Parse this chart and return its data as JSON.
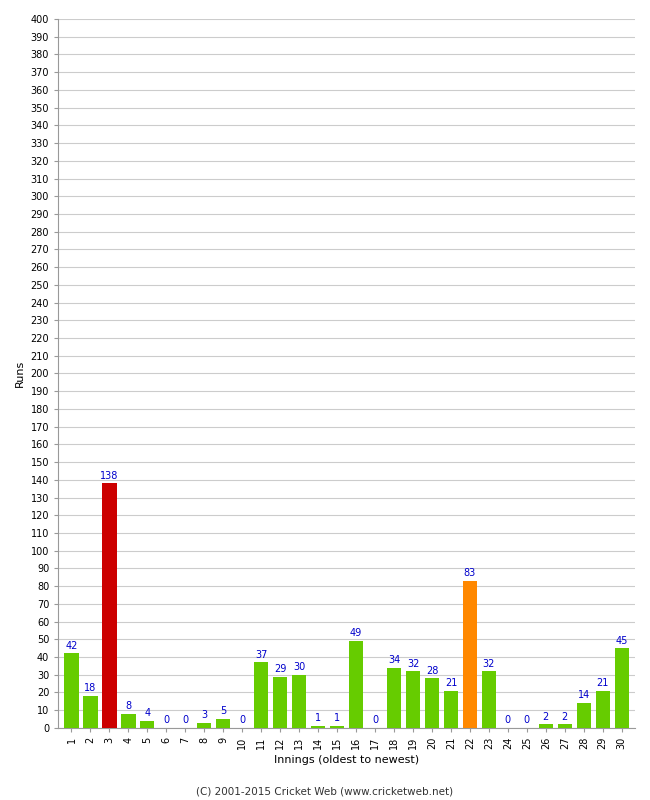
{
  "innings": [
    1,
    2,
    3,
    4,
    5,
    6,
    7,
    8,
    9,
    10,
    11,
    12,
    13,
    14,
    15,
    16,
    17,
    18,
    19,
    20,
    21,
    22,
    23,
    24,
    25,
    26,
    27,
    28,
    29,
    30
  ],
  "runs": [
    42,
    18,
    138,
    8,
    4,
    0,
    0,
    3,
    5,
    0,
    37,
    29,
    30,
    1,
    1,
    49,
    0,
    34,
    32,
    28,
    21,
    83,
    32,
    0,
    0,
    2,
    2,
    14,
    21,
    45
  ],
  "colors": [
    "#66cc00",
    "#66cc00",
    "#cc0000",
    "#66cc00",
    "#66cc00",
    "#66cc00",
    "#66cc00",
    "#66cc00",
    "#66cc00",
    "#66cc00",
    "#66cc00",
    "#66cc00",
    "#66cc00",
    "#66cc00",
    "#66cc00",
    "#66cc00",
    "#66cc00",
    "#66cc00",
    "#66cc00",
    "#66cc00",
    "#66cc00",
    "#ff8800",
    "#66cc00",
    "#66cc00",
    "#66cc00",
    "#66cc00",
    "#66cc00",
    "#66cc00",
    "#66cc00",
    "#66cc00"
  ],
  "xlabel": "Innings (oldest to newest)",
  "ylabel": "Runs",
  "ylim": [
    0,
    400
  ],
  "yticks": [
    0,
    10,
    20,
    30,
    40,
    50,
    60,
    70,
    80,
    90,
    100,
    110,
    120,
    130,
    140,
    150,
    160,
    170,
    180,
    190,
    200,
    210,
    220,
    230,
    240,
    250,
    260,
    270,
    280,
    290,
    300,
    310,
    320,
    330,
    340,
    350,
    360,
    370,
    380,
    390,
    400
  ],
  "footer": "(C) 2001-2015 Cricket Web (www.cricketweb.net)",
  "bg_color": "#ffffff",
  "grid_color": "#cccccc",
  "label_color": "#0000cc",
  "bar_width": 0.75,
  "tick_fontsize": 7,
  "label_fontsize": 7,
  "axis_label_fontsize": 8
}
